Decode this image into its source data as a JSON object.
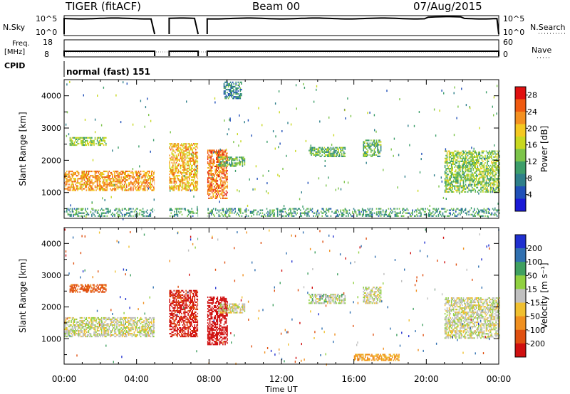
{
  "header": {
    "title": "TIGER (fitACF)",
    "beam": "Beam 00",
    "date": "07/Aug/2015"
  },
  "status_panels": {
    "nsky_label": "N.Sky",
    "nsearch_label": "N.Search",
    "nsky_ticks": [
      "10^5",
      "10^0"
    ],
    "nsearch_ticks": [
      "10^5",
      "10^0"
    ],
    "freq_label": "Freq.",
    "freq_unit": "[MHz]",
    "freq_ticks": [
      "18",
      "8"
    ],
    "nave_label": "Nave",
    "nave_ticks": [
      "60",
      "0"
    ],
    "cpid_label": "CPID",
    "cpid_value": "normal (fast) 151"
  },
  "chart_data": [
    {
      "type": "heatmap",
      "name": "power-panel",
      "ylabel": "Slant Range [km]",
      "xlabel": "",
      "x_ticks": [
        "00:00",
        "04:00",
        "08:00",
        "12:00",
        "16:00",
        "20:00",
        "00:00"
      ],
      "x_range_hours": [
        0,
        24
      ],
      "ylim": [
        200,
        4500
      ],
      "y_ticks": [
        1000,
        2000,
        3000,
        4000
      ],
      "colorbar": {
        "label": "Power [dB]",
        "ticks": [
          "4",
          "8",
          "12",
          "16",
          "20",
          "24",
          "28"
        ],
        "range": [
          0,
          30
        ]
      },
      "data_gaps_hours": [
        [
          5.0,
          5.8
        ],
        [
          7.4,
          7.9
        ]
      ],
      "echo_regions": [
        {
          "t": [
            0.0,
            5.0
          ],
          "r": [
            1050,
            1650
          ],
          "power_db": 22
        },
        {
          "t": [
            0.3,
            2.3
          ],
          "r": [
            2450,
            2700
          ],
          "power_db": 14
        },
        {
          "t": [
            5.8,
            7.4
          ],
          "r": [
            1050,
            2500
          ],
          "power_db": 20
        },
        {
          "t": [
            7.9,
            9.0
          ],
          "r": [
            800,
            2300
          ],
          "power_db": 24
        },
        {
          "t": [
            8.5,
            10.0
          ],
          "r": [
            1800,
            2100
          ],
          "power_db": 12
        },
        {
          "t": [
            8.8,
            9.8
          ],
          "r": [
            3900,
            4400
          ],
          "power_db": 8
        },
        {
          "t": [
            13.5,
            15.5
          ],
          "r": [
            2100,
            2400
          ],
          "power_db": 12
        },
        {
          "t": [
            16.5,
            17.5
          ],
          "r": [
            2100,
            2600
          ],
          "power_db": 12
        },
        {
          "t": [
            21.0,
            24.0
          ],
          "r": [
            1000,
            2300
          ],
          "power_db": 14
        },
        {
          "t": [
            0.0,
            24.0
          ],
          "r": [
            250,
            500
          ],
          "power_db": 10
        }
      ]
    },
    {
      "type": "heatmap",
      "name": "velocity-panel",
      "ylabel": "Slant Range [km]",
      "xlabel": "Time UT",
      "x_ticks": [
        "00:00",
        "04:00",
        "08:00",
        "12:00",
        "16:00",
        "20:00",
        "00:00"
      ],
      "x_range_hours": [
        0,
        24
      ],
      "ylim": [
        200,
        4500
      ],
      "y_ticks": [
        1000,
        2000,
        3000,
        4000
      ],
      "colorbar": {
        "label": "Velocity [m s⁻¹]",
        "ticks": [
          "200",
          "100",
          "50",
          "15",
          "-15",
          "-50",
          "-100",
          "-200"
        ],
        "range": [
          -250,
          250
        ]
      },
      "data_gaps_hours": [
        [
          5.0,
          5.8
        ],
        [
          7.4,
          7.9
        ]
      ],
      "echo_regions": [
        {
          "t": [
            0.0,
            5.0
          ],
          "r": [
            1050,
            1650
          ],
          "velocity": 0
        },
        {
          "t": [
            0.3,
            2.3
          ],
          "r": [
            2450,
            2700
          ],
          "velocity": -120
        },
        {
          "t": [
            5.8,
            7.4
          ],
          "r": [
            1050,
            2500
          ],
          "velocity": -180
        },
        {
          "t": [
            7.9,
            9.0
          ],
          "r": [
            800,
            2300
          ],
          "velocity": -220
        },
        {
          "t": [
            8.5,
            10.0
          ],
          "r": [
            1800,
            2100
          ],
          "velocity": 0
        },
        {
          "t": [
            13.5,
            15.5
          ],
          "r": [
            2100,
            2400
          ],
          "velocity": 10
        },
        {
          "t": [
            16.5,
            17.5
          ],
          "r": [
            2100,
            2600
          ],
          "velocity": 0
        },
        {
          "t": [
            21.0,
            24.0
          ],
          "r": [
            1000,
            2300
          ],
          "velocity": 0
        },
        {
          "t": [
            16.0,
            18.5
          ],
          "r": [
            300,
            500
          ],
          "velocity": -60
        }
      ]
    }
  ]
}
